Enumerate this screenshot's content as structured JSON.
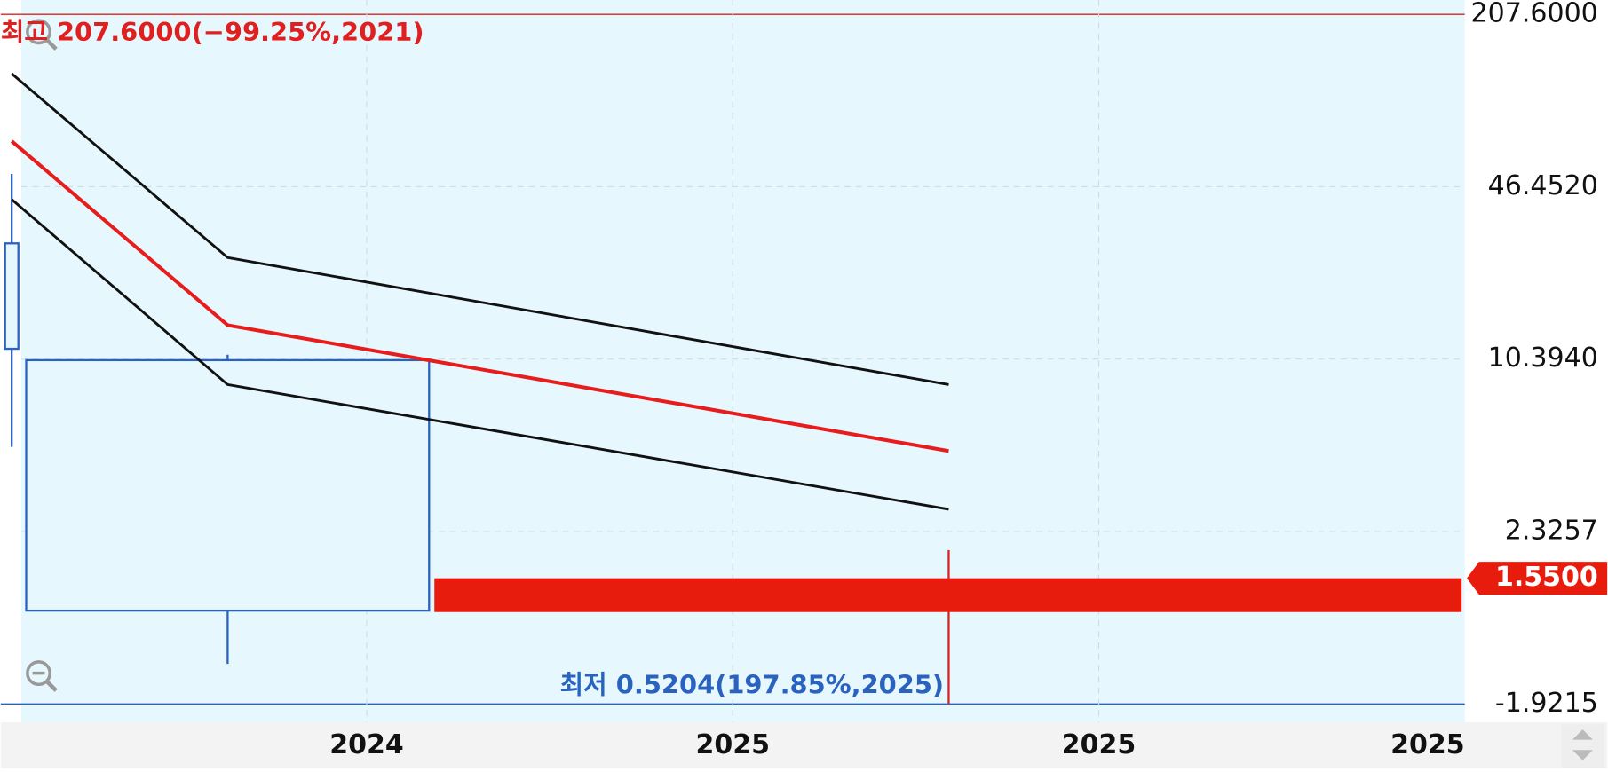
{
  "chart_data": {
    "type": "candlestick",
    "annotation_high": "최고 207.6000(−99.25%,2021)",
    "annotation_low": "최저 0.5204(197.85%,2025)",
    "log_scale": true,
    "grid": true,
    "ylim": [
      0.5204,
      207.6
    ],
    "yticks": [
      {
        "value": 207.6,
        "label": "207.6000"
      },
      {
        "value": 46.452,
        "label": "46.4520"
      },
      {
        "value": 10.394,
        "label": "10.3940"
      },
      2.3257
    ],
    "bottom_axis_label": "-1.9215",
    "xlim": [
      0,
      4
    ],
    "xticks": [
      {
        "value": 1,
        "label": "2024"
      },
      {
        "value": 2,
        "label": "2025"
      },
      {
        "value": 3,
        "label": "2025"
      },
      {
        "value": 4,
        "label": "2025"
      }
    ],
    "candles": {
      "color": "#2a62c0",
      "low_color": "#e02020",
      "x": [
        0.03,
        0.62,
        2.59
      ],
      "open": [
        11.37,
        10.3,
        null
      ],
      "high": [
        51.9,
        10.8,
        1.98
      ],
      "low": [
        4.85,
        0.737,
        0.5204
      ],
      "close": [
        28.4,
        1.17,
        null
      ]
    },
    "series": [
      {
        "color": "#111111",
        "x": [
          0.03,
          0.62,
          2.59
        ],
        "values": [
          124.0,
          25.1,
          8.33
        ]
      },
      {
        "color": "#e81c1c",
        "x": [
          0.03,
          0.62,
          2.59
        ],
        "values": [
          69.0,
          13.96,
          4.68
        ]
      },
      {
        "color": "#111111",
        "x": [
          0.03,
          0.62,
          2.59
        ],
        "values": [
          41.6,
          8.33,
          2.82
        ]
      }
    ],
    "current_price": {
      "value": 1.55,
      "label": "1.5500",
      "color": "#e81c0c"
    }
  }
}
